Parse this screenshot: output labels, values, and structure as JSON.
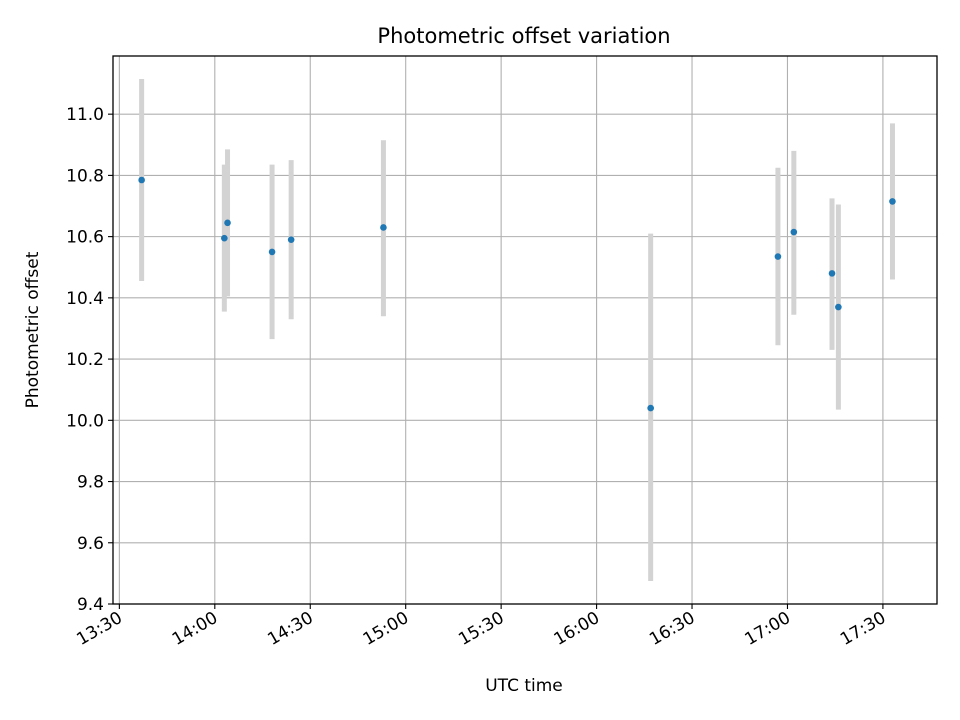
{
  "chart_data": {
    "type": "scatter",
    "title": "Photometric offset variation",
    "xlabel": "UTC time",
    "ylabel": "Photometric offset",
    "x_axis_kind": "time",
    "xlim": [
      "13:28",
      "17:47"
    ],
    "ylim": [
      9.4,
      11.19
    ],
    "xticks": [
      "13:30",
      "14:00",
      "14:30",
      "15:00",
      "15:30",
      "16:00",
      "16:30",
      "17:00",
      "17:30"
    ],
    "yticks": [
      9.4,
      9.6,
      9.8,
      10.0,
      10.2,
      10.4,
      10.6,
      10.8,
      11.0
    ],
    "ytick_labels": [
      "9.4",
      "9.6",
      "9.8",
      "10.0",
      "10.2",
      "10.4",
      "10.6",
      "10.8",
      "11.0"
    ],
    "grid": true,
    "colors": {
      "point": "#1f77b4",
      "errorbar": "#d3d3d3",
      "grid": "#b0b0b0"
    },
    "series": [
      {
        "points": [
          {
            "x": "13:37",
            "y": 10.785,
            "ylow": 10.455,
            "yhigh": 11.115
          },
          {
            "x": "14:03",
            "y": 10.595,
            "ylow": 10.355,
            "yhigh": 10.835
          },
          {
            "x": "14:04",
            "y": 10.645,
            "ylow": 10.405,
            "yhigh": 10.885
          },
          {
            "x": "14:18",
            "y": 10.55,
            "ylow": 10.265,
            "yhigh": 10.835
          },
          {
            "x": "14:24",
            "y": 10.59,
            "ylow": 10.33,
            "yhigh": 10.85
          },
          {
            "x": "14:53",
            "y": 10.63,
            "ylow": 10.34,
            "yhigh": 10.915
          },
          {
            "x": "16:17",
            "y": 10.04,
            "ylow": 9.475,
            "yhigh": 10.61
          },
          {
            "x": "16:57",
            "y": 10.535,
            "ylow": 10.245,
            "yhigh": 10.825
          },
          {
            "x": "17:02",
            "y": 10.615,
            "ylow": 10.345,
            "yhigh": 10.88
          },
          {
            "x": "17:14",
            "y": 10.48,
            "ylow": 10.23,
            "yhigh": 10.725
          },
          {
            "x": "17:16",
            "y": 10.37,
            "ylow": 10.035,
            "yhigh": 10.705
          },
          {
            "x": "17:33",
            "y": 10.715,
            "ylow": 10.46,
            "yhigh": 10.97
          }
        ]
      }
    ]
  }
}
